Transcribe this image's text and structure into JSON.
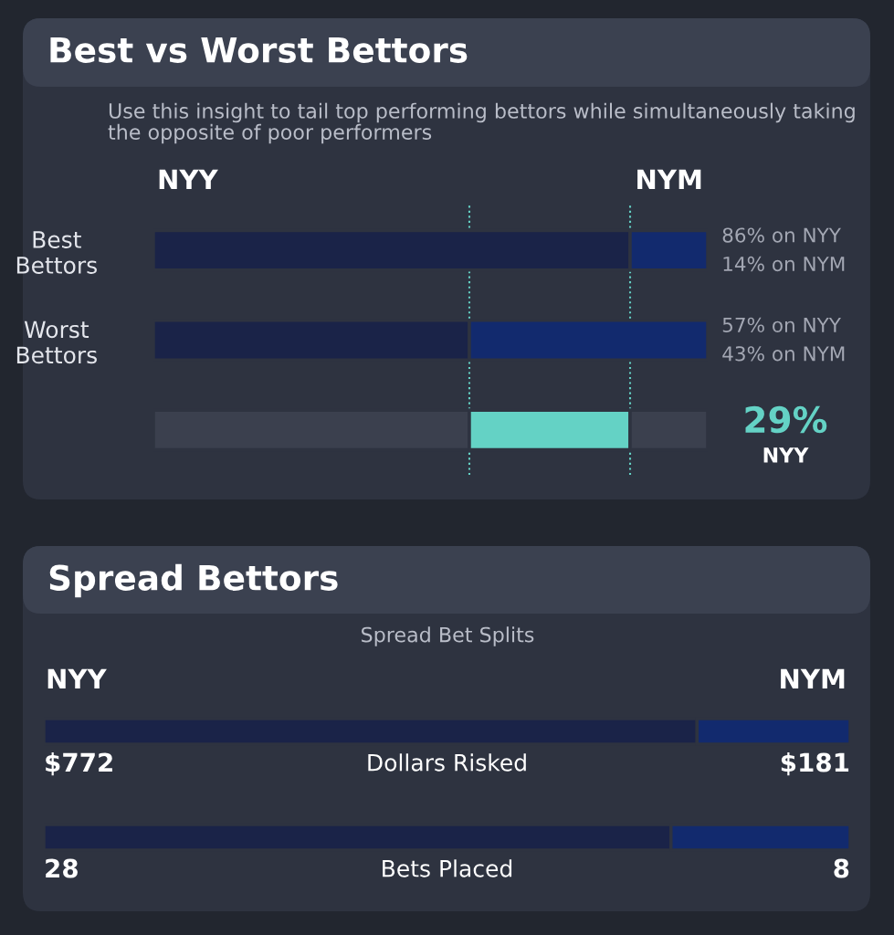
{
  "chart_data": [
    {
      "type": "bar",
      "orientation": "horizontal",
      "stacked": true,
      "title": "Best vs Worst Bettors",
      "subtitle": "Use this insight to tail top performing bettors while simultaneously taking the opposite of poor performers",
      "categories": [
        "Best\nBettors",
        "Worst\nBettors",
        null
      ],
      "series": [
        {
          "name": "NYY",
          "color": "#1a2348",
          "values": [
            86,
            57,
            null
          ],
          "value_labels": [
            "86% on NYY",
            "57% on NYY",
            null
          ]
        },
        {
          "name": "NYM",
          "color": "#122a6e",
          "values": [
            14,
            43,
            null
          ],
          "value_labels": [
            "14% on NYM",
            "43% on NYM",
            null
          ]
        },
        {
          "color": "#3b404e",
          "values": [
            null,
            null,
            57
          ]
        },
        {
          "color": "#64d2c5",
          "values": [
            null,
            null,
            29
          ]
        },
        {
          "color": "#3b404e",
          "values": [
            null,
            null,
            14
          ]
        }
      ],
      "xlim": [
        0,
        100
      ],
      "tick_labels": "y",
      "ref_lines": [
        {
          "axis": "x",
          "value": 86,
          "color": "#64d2c5",
          "line_style": "dotted"
        },
        {
          "axis": "x",
          "value": 57,
          "color": "#64d2c5",
          "line_style": "dotted"
        }
      ],
      "annotations": [
        "29%",
        "NYY"
      ]
    },
    {
      "type": "bar",
      "orientation": "horizontal",
      "stacked": true,
      "title": "Spread Bettors",
      "subtitle": "Spread Bet Splits",
      "categories": [
        "Dollars Risked"
      ],
      "series": [
        {
          "name": "NYY",
          "color": "#1a2348",
          "values": [
            772
          ],
          "value_labels": [
            "$772"
          ]
        },
        {
          "name": "NYM",
          "color": "#122a6e",
          "values": [
            181
          ],
          "value_labels": [
            "$181"
          ]
        }
      ],
      "xlim": [
        0,
        953
      ],
      "tick_labels": false
    },
    {
      "type": "bar",
      "orientation": "horizontal",
      "stacked": true,
      "categories": [
        "Bets Placed"
      ],
      "series": [
        {
          "color": "#1a2348",
          "values": [
            28
          ],
          "value_labels": [
            "28"
          ]
        },
        {
          "color": "#122a6e",
          "values": [
            8
          ],
          "value_labels": [
            "8"
          ]
        }
      ],
      "xlim": [
        0,
        36
      ],
      "tick_labels": false
    }
  ]
}
